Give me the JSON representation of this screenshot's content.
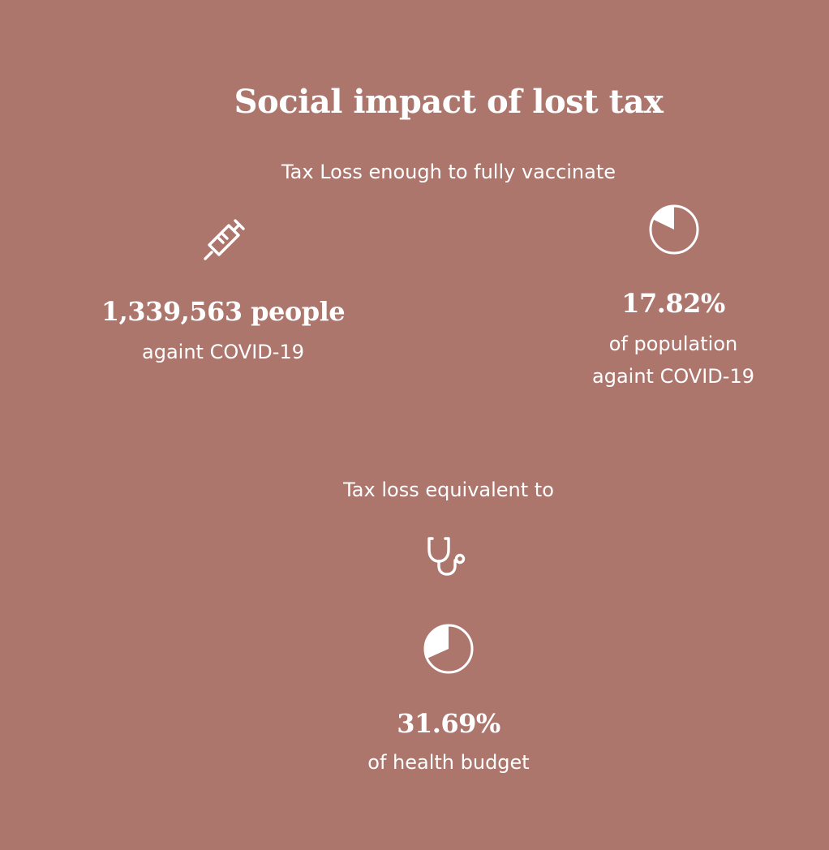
{
  "header": {
    "title": "Social impact of lost tax"
  },
  "vaccination": {
    "heading": "Tax Loss enough to fully vaccinate",
    "people": {
      "icon": "syringe-icon",
      "value": "1,339,563 people",
      "caption": "againt COVID-19"
    },
    "population": {
      "icon": "pie-chart-icon",
      "share": 17.82,
      "value": "17.82%",
      "caption_line1": "of population",
      "caption_line2": "againt COVID-19"
    }
  },
  "health": {
    "heading": "Tax loss equivalent to",
    "icon": "stethoscope-icon",
    "pie_icon": "pie-chart-icon",
    "share": 31.69,
    "value": "31.69%",
    "caption": "of health budget"
  },
  "colors": {
    "background": "#ad766d",
    "foreground": "#ffffff"
  }
}
